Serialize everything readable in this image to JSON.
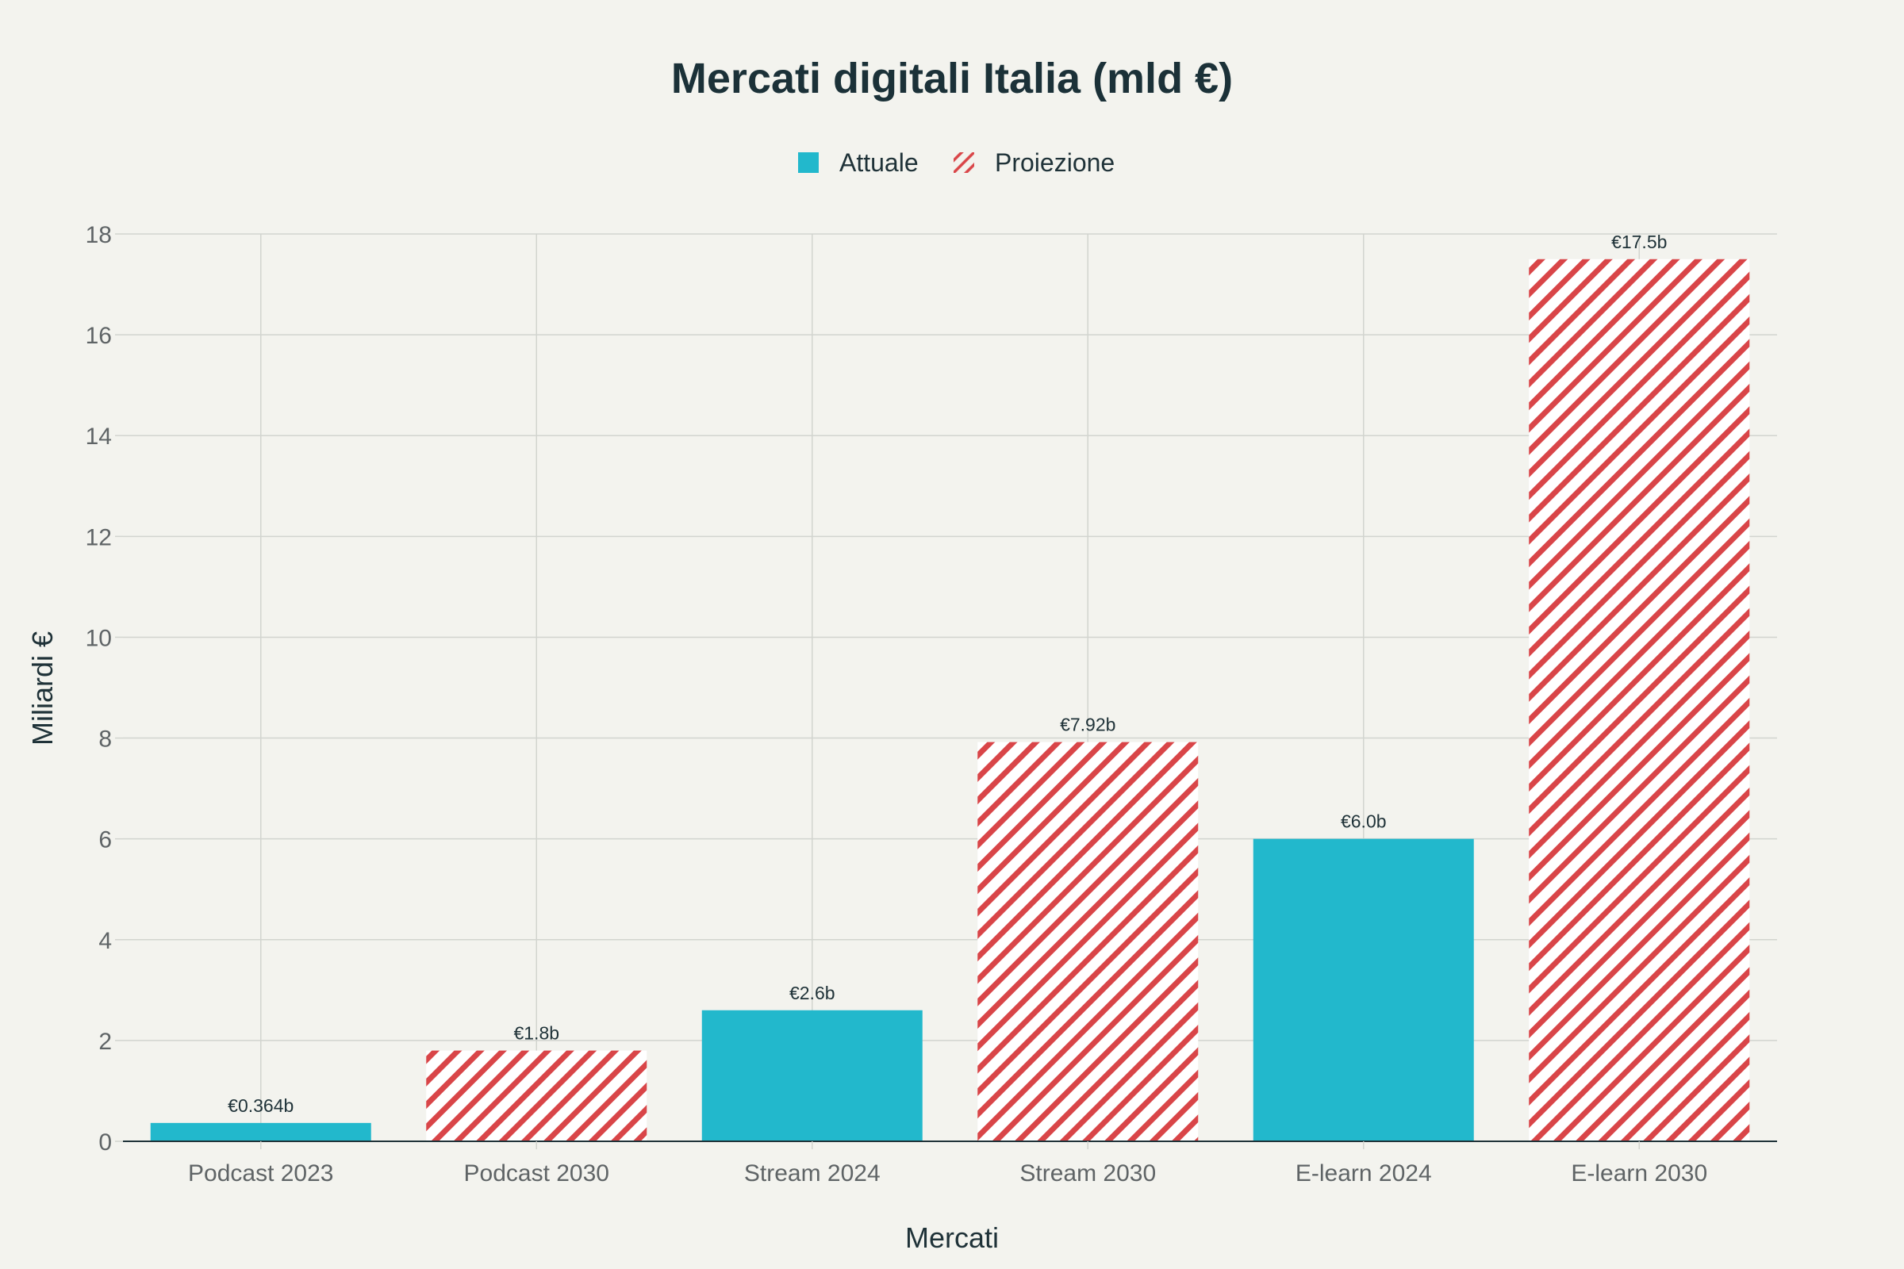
{
  "chart_data": {
    "type": "bar",
    "title": "Mercati digitali Italia (mld €)",
    "xlabel": "Mercati",
    "ylabel": "Miliardi €",
    "ylim": [
      0,
      18
    ],
    "yticks": [
      "0",
      "2",
      "4",
      "6",
      "8",
      "10",
      "12",
      "14",
      "16",
      "18"
    ],
    "grid": true,
    "legend_position": "top-center",
    "legend": [
      {
        "name": "Attuale",
        "color": "#22b8cc",
        "pattern": "solid"
      },
      {
        "name": "Proiezione",
        "color": "#d94548",
        "pattern": "diagonal-hatch"
      }
    ],
    "categories": [
      "Podcast 2023",
      "Podcast 2030",
      "Stream 2024",
      "Stream 2030",
      "E-learn 2024",
      "E-learn 2030"
    ],
    "values": [
      0.364,
      1.8,
      2.6,
      7.92,
      6.0,
      17.5
    ],
    "value_labels": [
      "€0.364b",
      "€1.8b",
      "€2.6b",
      "€7.92b",
      "€6.0b",
      "€17.5b"
    ],
    "series_membership": [
      "Attuale",
      "Proiezione",
      "Attuale",
      "Proiezione",
      "Attuale",
      "Proiezione"
    ]
  }
}
